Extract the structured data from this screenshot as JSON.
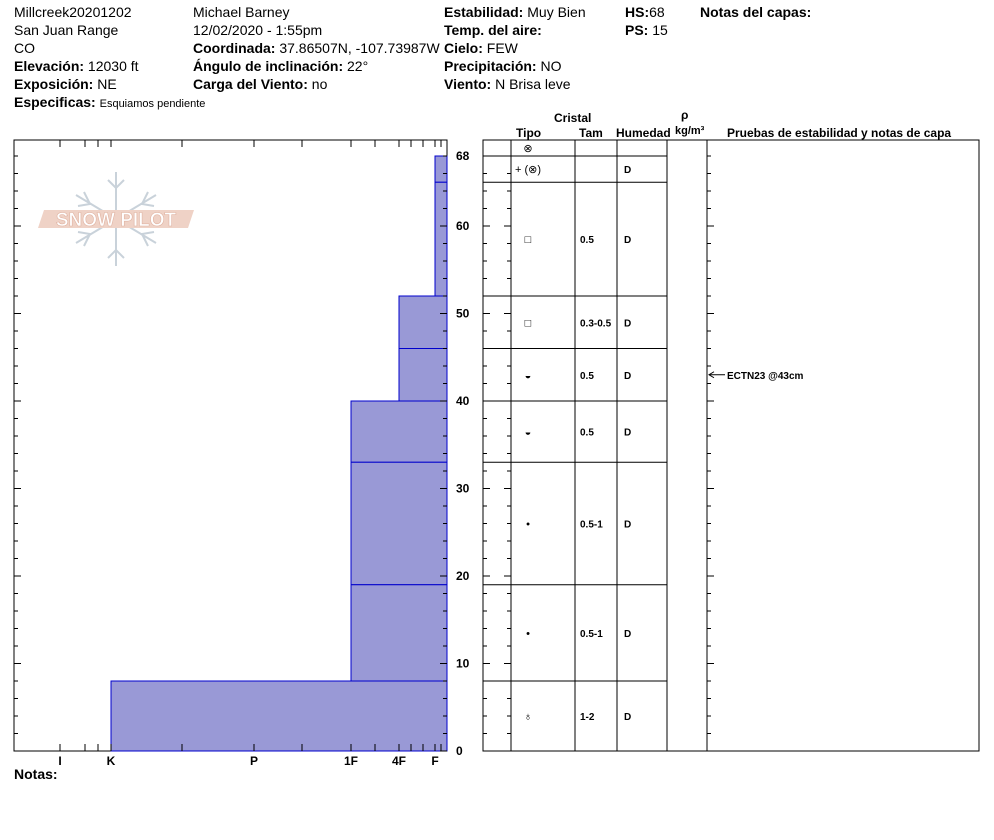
{
  "header": {
    "pit_name": "Millcreek20201202",
    "range": "San Juan Range",
    "state": "CO",
    "elevation_label": "Elevación:",
    "elevation_value": "12030 ft",
    "aspect_label": "Exposición:",
    "aspect_value": "NE",
    "specifics_label": "Especificas:",
    "specifics_value": "Esquiamos pendiente",
    "observer": "Michael Barney",
    "datetime": "12/02/2020 - 1:55pm",
    "coord_label": "Coordinada:",
    "coord_value": "37.86507N, -107.73987W",
    "slope_label": "Ángulo de inclinación:",
    "slope_value": "22°",
    "wind_load_label": "Carga del Viento:",
    "wind_load_value": "no",
    "stability_label": "Estabilidad:",
    "stability_value": "Muy Bien",
    "air_temp_label": "Temp. del aire:",
    "sky_label": "Cielo:",
    "sky_value": "FEW",
    "precip_label": "Precipitación:",
    "precip_value": "NO",
    "wind_label": "Viento:",
    "wind_value": "N Brisa leve",
    "hs_label": "HS:",
    "hs_value": "68",
    "ps_label": "PS:",
    "ps_value": "15",
    "layer_notes_label": "Notas del capas:",
    "notes_label": "Notas:"
  },
  "logo_text": "SNOW PILOT",
  "columns": {
    "crystal": "Cristal",
    "type": "Tipo",
    "size": "Tam",
    "moisture": "Humedad",
    "rho": "ρ",
    "density_unit": "kg/m³",
    "tests": "Pruebas de estabilidad y notas de capa"
  },
  "colors": {
    "layer_fill": "#9999d6",
    "layer_line": "#0000cc"
  },
  "chart_data": {
    "type": "bar",
    "title": "",
    "xlabel": "",
    "ylabel": "",
    "ylim": [
      0,
      70
    ],
    "y_ticks": [
      "0",
      "10",
      "20",
      "30",
      "40",
      "50",
      "60",
      "68"
    ],
    "x_ticks": [
      "I",
      "K",
      "P",
      "1F",
      "4F",
      "F"
    ],
    "x_orientation": "hardness increases leftward",
    "layers": [
      {
        "top": 68,
        "bottom": 65,
        "hardness": "F",
        "grain_symbol": "+ (⊗)",
        "size": "",
        "moisture": "D"
      },
      {
        "top": 65,
        "bottom": 52,
        "hardness": "F",
        "grain_symbol": "□",
        "size": "0.5",
        "moisture": "D"
      },
      {
        "top": 52,
        "bottom": 46,
        "hardness": "4F",
        "grain_symbol": "□",
        "size": "0.3-0.5",
        "moisture": "D"
      },
      {
        "top": 46,
        "bottom": 40,
        "hardness": "4F",
        "grain_symbol": "◒",
        "size": "0.5",
        "moisture": "D"
      },
      {
        "top": 40,
        "bottom": 33,
        "hardness": "1F",
        "grain_symbol": "◒",
        "size": "0.5",
        "moisture": "D"
      },
      {
        "top": 33,
        "bottom": 19,
        "hardness": "1F",
        "grain_symbol": "•",
        "size": "0.5-1",
        "moisture": "D"
      },
      {
        "top": 19,
        "bottom": 8,
        "hardness": "1F",
        "grain_symbol": "•",
        "size": "0.5-1",
        "moisture": "D"
      },
      {
        "top": 8,
        "bottom": 0,
        "hardness": "K",
        "grain_symbol": "♁",
        "size": "1-2",
        "moisture": "D"
      }
    ],
    "surface_symbol": "⊗",
    "tests": [
      {
        "depth": 43,
        "label": "ECTN23 @43cm"
      }
    ]
  }
}
